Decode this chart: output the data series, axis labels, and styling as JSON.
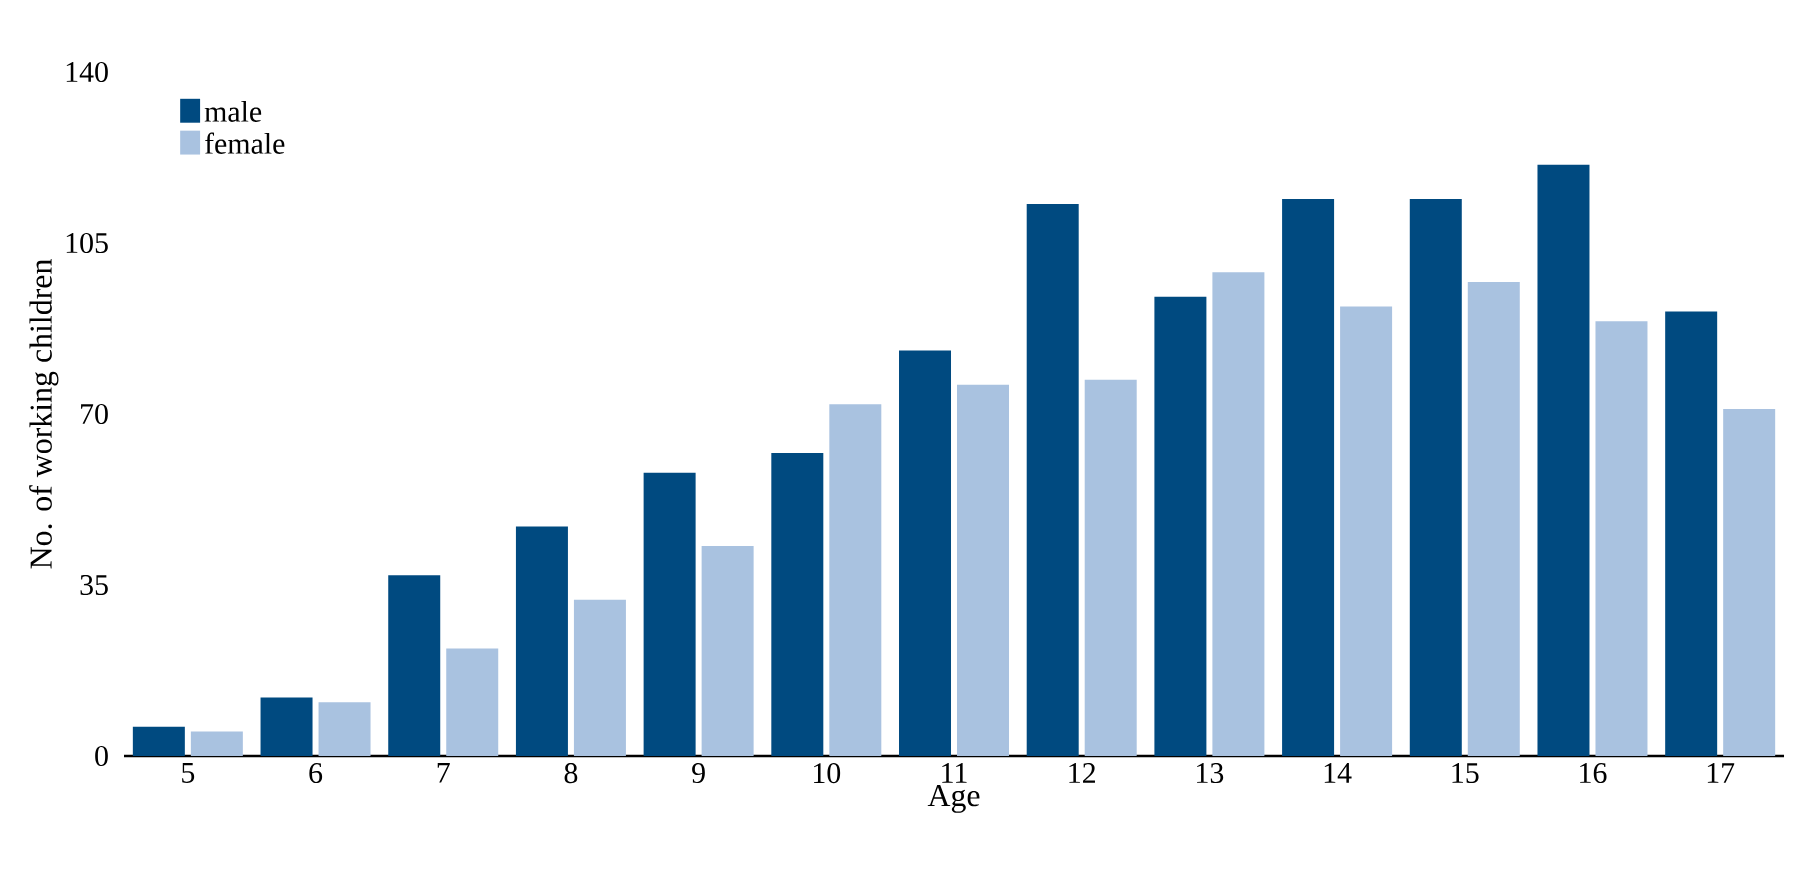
{
  "chart_data": {
    "type": "bar",
    "xlabel": "Age",
    "ylabel": "No. of working children",
    "categories": [
      "5",
      "6",
      "7",
      "8",
      "9",
      "10",
      "11",
      "12",
      "13",
      "14",
      "15",
      "16",
      "17"
    ],
    "series": [
      {
        "name": "male",
        "color": "#004a80",
        "values": [
          6,
          12,
          37,
          47,
          58,
          62,
          83,
          113,
          94,
          114,
          114,
          121,
          91
        ]
      },
      {
        "name": "female",
        "color": "#a9c2e0",
        "values": [
          5,
          11,
          22,
          32,
          43,
          72,
          76,
          77,
          99,
          92,
          97,
          89,
          71
        ]
      }
    ],
    "ylim": [
      0,
      140
    ],
    "yticks": [
      0,
      35,
      70,
      105,
      140
    ],
    "grid": false,
    "legend": "top left"
  }
}
